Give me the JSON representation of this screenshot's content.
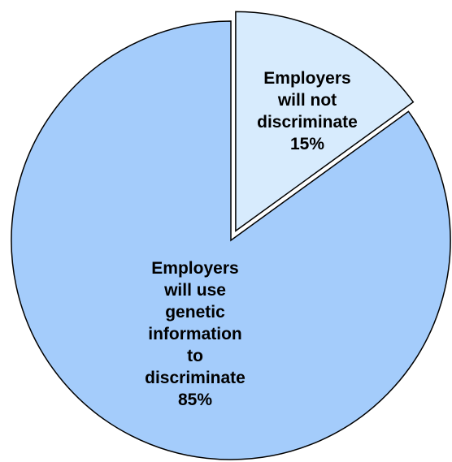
{
  "chart_data": {
    "type": "pie",
    "slices": [
      {
        "label": "Employers will not discriminate",
        "value": 15,
        "value_label": "15%",
        "color": "#d7ebfd",
        "exploded": true
      },
      {
        "label": "Employers will use genetic information to discriminate",
        "value": 85,
        "value_label": "85%",
        "color": "#a4ccfb",
        "exploded": false
      }
    ],
    "label_lines": [
      [
        "Employers",
        "will not",
        "discriminate",
        "15%"
      ],
      [
        "Employers",
        "will use",
        "genetic",
        "information",
        "to",
        "discriminate",
        "85%"
      ]
    ],
    "stroke_color": "#000000"
  }
}
